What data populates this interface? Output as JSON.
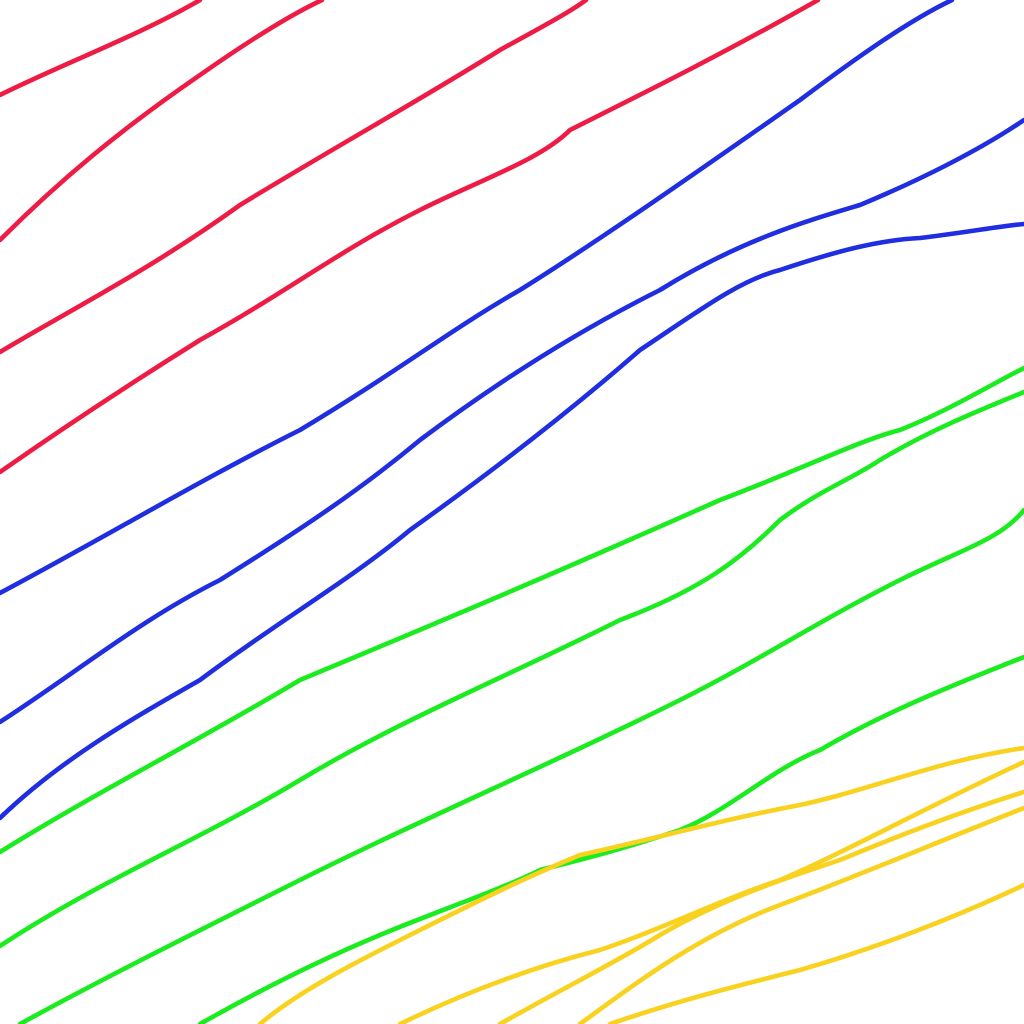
{
  "background": "#ffffff",
  "palette": {
    "red": "#ee1c44",
    "blue": "#1f2ee0",
    "green": "#1aec1f",
    "yellow": "#f8d21e"
  },
  "strokes": [
    {
      "name": "red-stroke-1",
      "color": "red"
    },
    {
      "name": "red-stroke-2",
      "color": "red"
    },
    {
      "name": "red-stroke-3",
      "color": "red"
    },
    {
      "name": "red-stroke-4",
      "color": "red"
    },
    {
      "name": "blue-stroke-1",
      "color": "blue"
    },
    {
      "name": "blue-stroke-2",
      "color": "blue"
    },
    {
      "name": "blue-stroke-3",
      "color": "blue"
    },
    {
      "name": "green-stroke-1",
      "color": "green"
    },
    {
      "name": "green-stroke-2",
      "color": "green"
    },
    {
      "name": "green-stroke-3",
      "color": "green"
    },
    {
      "name": "green-stroke-4",
      "color": "green"
    },
    {
      "name": "yellow-stroke-1",
      "color": "yellow"
    },
    {
      "name": "yellow-stroke-2",
      "color": "yellow"
    },
    {
      "name": "yellow-stroke-3",
      "color": "yellow"
    },
    {
      "name": "yellow-stroke-4",
      "color": "yellow"
    },
    {
      "name": "yellow-stroke-5",
      "color": "yellow"
    }
  ]
}
